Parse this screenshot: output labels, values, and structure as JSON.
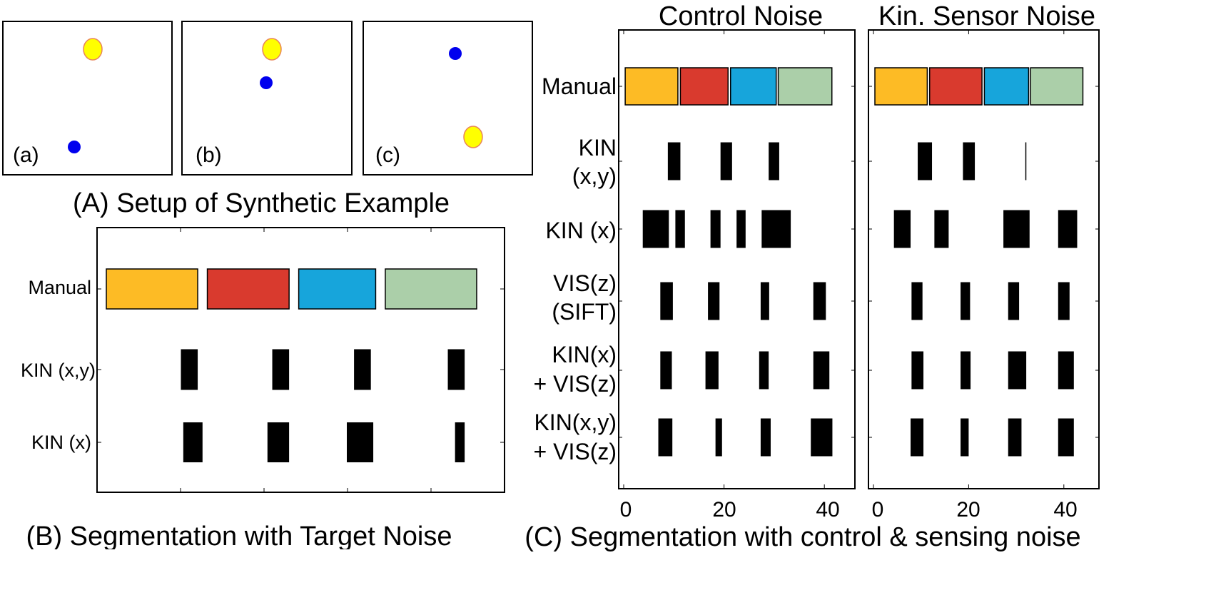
{
  "panel_a": {
    "caption": "(A) Setup of Synthetic Example",
    "boxes": [
      {
        "label": "(a)"
      },
      {
        "label": "(b)"
      },
      {
        "label": "(c)"
      }
    ],
    "colors": {
      "goal_fill": "#ffff00",
      "goal_stroke": "#e8845a",
      "agent": "#0000ee"
    }
  },
  "panel_b": {
    "caption": "(B) Segmentation with Target Noise",
    "row_labels": [
      "Manual",
      "KIN (x,y)",
      "KIN (x)"
    ]
  },
  "panel_c": {
    "caption": "(C) Segmentation with control & sensing noise",
    "titles": [
      "Control Noise",
      "Kin. Sensor Noise"
    ],
    "row_labels": [
      [
        "Manual"
      ],
      [
        "KIN",
        "(x,y)"
      ],
      [
        "KIN (x)"
      ],
      [
        "VIS(z)",
        "(SIFT)"
      ],
      [
        "KIN(x)",
        "+ VIS(z)"
      ],
      [
        "KIN(x,y)",
        "+ VIS(z)"
      ]
    ],
    "x_ticks": [
      "0",
      "20",
      "40"
    ]
  },
  "segment_colors": [
    "#fdbb25",
    "#d93a2e",
    "#17a5db",
    "#abcfa9"
  ],
  "chart_data": [
    {
      "type": "timeline-segmentation",
      "title": "(B) Segmentation with Target Noise",
      "rows": [
        {
          "name": "Manual",
          "segments": [
            [
              0.0,
              1.9
            ],
            [
              2.1,
              3.8
            ],
            [
              4.0,
              5.6
            ],
            [
              5.8,
              7.7
            ]
          ]
        },
        {
          "name": "KIN (x,y)",
          "segments": [
            [
              1.55,
              1.9
            ],
            [
              3.45,
              3.8
            ],
            [
              5.15,
              5.5
            ],
            [
              7.1,
              7.45
            ]
          ]
        },
        {
          "name": "KIN (x)",
          "segments": [
            [
              1.6,
              2.0
            ],
            [
              3.35,
              3.8
            ],
            [
              5.0,
              5.55
            ],
            [
              7.25,
              7.45
            ]
          ]
        }
      ]
    },
    {
      "type": "timeline-segmentation",
      "title": "Control Noise",
      "xlim": [
        0,
        45
      ],
      "x_ticks": [
        0,
        20,
        40
      ],
      "rows": [
        {
          "name": "Manual",
          "segments": [
            [
              0.3,
              10.8
            ],
            [
              11.3,
              20.8
            ],
            [
              21.3,
              30.4
            ],
            [
              30.8,
              41.5
            ]
          ]
        },
        {
          "name": "KIN (x,y)",
          "segments": [
            [
              8.8,
              11.3
            ],
            [
              19.3,
              21.6
            ],
            [
              28.9,
              31.0
            ]
          ]
        },
        {
          "name": "KIN (x)",
          "segments": [
            [
              3.8,
              9.0
            ],
            [
              10.3,
              12.2
            ],
            [
              17.3,
              19.3
            ],
            [
              22.5,
              24.3
            ],
            [
              27.5,
              33.3
            ]
          ]
        },
        {
          "name": "VIS(z) (SIFT)",
          "segments": [
            [
              7.3,
              9.8
            ],
            [
              16.8,
              19.1
            ],
            [
              27.3,
              29.0
            ],
            [
              37.8,
              40.3
            ]
          ]
        },
        {
          "name": "KIN(x) + VIS(z)",
          "segments": [
            [
              7.3,
              9.6
            ],
            [
              16.3,
              18.9
            ],
            [
              27.0,
              28.9
            ],
            [
              37.8,
              41.0
            ]
          ]
        },
        {
          "name": "KIN(x,y) + VIS(z)",
          "segments": [
            [
              6.9,
              9.7
            ],
            [
              18.3,
              19.6
            ],
            [
              27.3,
              29.3
            ],
            [
              37.3,
              41.6
            ]
          ]
        }
      ]
    },
    {
      "type": "timeline-segmentation",
      "title": "Kin. Sensor Noise",
      "xlim": [
        0,
        45
      ],
      "x_ticks": [
        0,
        20,
        40
      ],
      "rows": [
        {
          "name": "Manual",
          "segments": [
            [
              0.3,
              11.3
            ],
            [
              11.8,
              22.8
            ],
            [
              23.3,
              32.6
            ],
            [
              33.0,
              44.0
            ]
          ]
        },
        {
          "name": "KIN (x,y)",
          "segments": [
            [
              9.3,
              12.3
            ],
            [
              18.8,
              21.3
            ],
            [
              31.9,
              32.1
            ]
          ]
        },
        {
          "name": "KIN (x)",
          "segments": [
            [
              4.3,
              7.8
            ],
            [
              12.8,
              15.8
            ],
            [
              27.3,
              32.8
            ],
            [
              38.8,
              42.8
            ]
          ]
        },
        {
          "name": "VIS(z) (SIFT)",
          "segments": [
            [
              8.0,
              10.3
            ],
            [
              18.3,
              20.3
            ],
            [
              28.3,
              30.6
            ],
            [
              38.8,
              41.2
            ]
          ]
        },
        {
          "name": "KIN(x) + VIS(z)",
          "segments": [
            [
              8.0,
              10.5
            ],
            [
              18.3,
              20.4
            ],
            [
              28.3,
              32.1
            ],
            [
              38.8,
              42.1
            ]
          ]
        },
        {
          "name": "KIN(x,y) + VIS(z)",
          "segments": [
            [
              7.8,
              10.5
            ],
            [
              18.3,
              20.0
            ],
            [
              28.3,
              31.1
            ],
            [
              38.8,
              42.1
            ]
          ]
        }
      ]
    }
  ]
}
